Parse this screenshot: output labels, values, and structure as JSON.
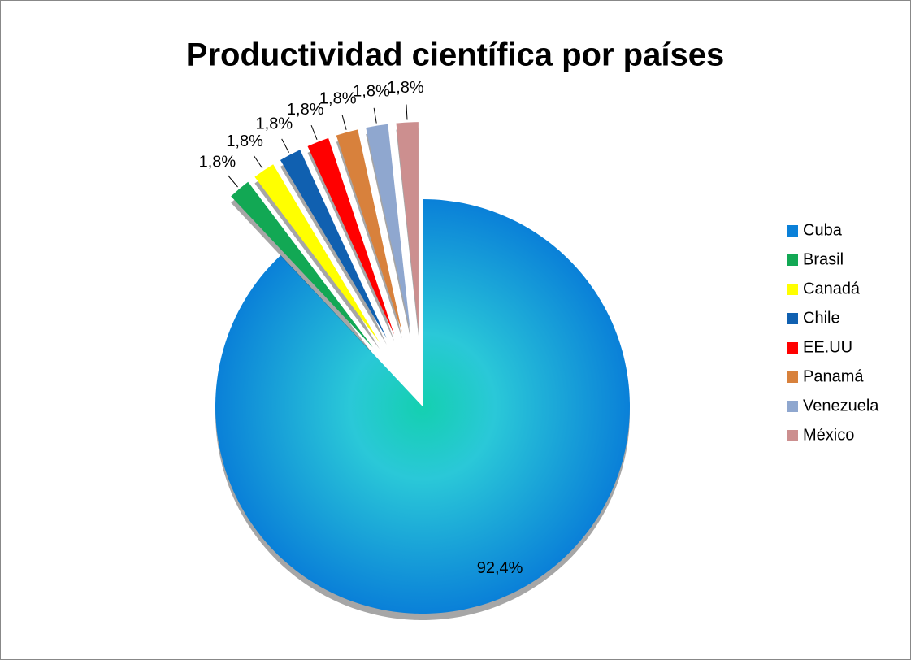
{
  "chart_data": {
    "type": "pie",
    "title": "Productividad científica por países",
    "categories": [
      "Cuba",
      "Brasil",
      "Canadá",
      "Chile",
      "EE.UU",
      "Panamá",
      "Venezuela",
      "México"
    ],
    "values": [
      92.4,
      1.8,
      1.8,
      1.8,
      1.8,
      1.8,
      1.8,
      1.8
    ],
    "value_labels": [
      "92,4%",
      "1,8%",
      "1,8%",
      "1,8%",
      "1,8%",
      "1,8%",
      "1,8%",
      "1,8%"
    ],
    "colors": [
      "#1a8fd8",
      "#12a854",
      "#ffff00",
      "#1060b0",
      "#ff0000",
      "#d8813c",
      "#8fa7cf",
      "#cc8f8f"
    ],
    "legend": "right"
  }
}
